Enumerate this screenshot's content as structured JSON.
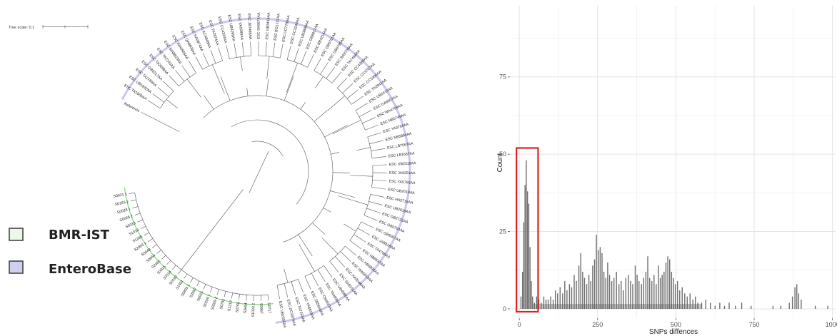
{
  "tree": {
    "scale_label": "Tree scale: 0.1",
    "reference_label": "Reference",
    "tips_enterobase": [
      "ESC TA1665AA",
      "ESC UB1932AA",
      "ESC TA2789AA",
      "ESC GB6217AA",
      "ESC TA2698AA",
      "ESC TA7243AA",
      "ESC WA8823AA",
      "ESC WA6986AA",
      "ESC QA8809AA",
      "ESC HA0874AA",
      "ESC ACA848AA",
      "ESC TA2874AA",
      "ESC CC4324AA",
      "ESC UB4299AA",
      "ESC VA9289AA",
      "ESC JB7469AA",
      "ESC SA8674AA",
      "ESC GB3416AA",
      "ESC BO1737AA",
      "ESC UC7789AA",
      "ESC CC3244AA",
      "ESC UB3880AA",
      "ESC GB8817AA",
      "ESC BB4214AA",
      "ESC GB6781AA",
      "ESC GB6795AA",
      "ESC BA9709AA",
      "ESC TA7494AA",
      "ESC CC4389AA",
      "ESC CC3707AA",
      "ESC CC5306AA",
      "ESC TA2841AA",
      "ESC UB2419AA",
      "ESC GA6507AA",
      "ESC WA4759AA",
      "ESC NB5749AA",
      "ESC YA3764AA",
      "ESC NB5884AA",
      "ESC LB7067AA",
      "ESC LB1667AA",
      "ESC UB2319AA",
      "ESC JA9251AA",
      "ESC YA5791AA",
      "ESC UB2018AA",
      "ESC HA5715AA",
      "ESC UB2919AA",
      "ESC GB2722AA",
      "ESC GB0764AA",
      "ESC GB8307AA",
      "ESC JA8818AA",
      "ESC TA4706AA",
      "ESC NB8537AA",
      "ESC HB8893AA",
      "ESC WA6818AA",
      "ESC HA3044AA",
      "ESC SA8151AA",
      "ESC UB4586AA",
      "ESC TA4999AA",
      "ESC CB4937AA",
      "ESC ZB5665AA",
      "ESC YA8818AA",
      "ESC TA7263AA",
      "ESC DC3474AA",
      "ESC UB2355AA"
    ],
    "tips_bmr": [
      "S0717",
      "S0867",
      "S1033 2",
      "S3654",
      "S0765",
      "S1210",
      "S0792",
      "S0209 2",
      "S0209 1",
      "S0915",
      "S2592",
      "S0893 1",
      "S1401",
      "S0190",
      "S3114",
      "S3315",
      "S2465",
      "S0054",
      "S0048",
      "S2083 1",
      "S1286",
      "S1318",
      "S0318",
      "S0028 2",
      "S0028 1",
      "S0183 2",
      "S3021 1"
    ],
    "colors": {
      "enterobase": "#c8c8f0",
      "bmr": "#7dd27d"
    }
  },
  "legend": {
    "items": [
      {
        "label": "BMR-IST",
        "color": "#ebf8e8",
        "border": "#444444"
      },
      {
        "label": "EnteroBase",
        "color": "#cfd0ef",
        "border": "#444444"
      }
    ]
  },
  "chart_data": {
    "type": "bar",
    "title": "",
    "xlabel": "SNPs diffences",
    "ylabel": "Count",
    "xlim": [
      -30,
      1010
    ],
    "ylim": [
      -3,
      98
    ],
    "xticks": [
      0,
      250,
      500,
      750,
      1000
    ],
    "yticks": [
      0,
      25,
      50,
      75
    ],
    "grid": true,
    "bar_color": "#555555",
    "bins": [
      {
        "x": 5,
        "y": 4
      },
      {
        "x": 10,
        "y": 12
      },
      {
        "x": 14,
        "y": 28
      },
      {
        "x": 18,
        "y": 40
      },
      {
        "x": 22,
        "y": 48
      },
      {
        "x": 26,
        "y": 38
      },
      {
        "x": 30,
        "y": 34
      },
      {
        "x": 34,
        "y": 20
      },
      {
        "x": 38,
        "y": 9
      },
      {
        "x": 42,
        "y": 4
      },
      {
        "x": 48,
        "y": 2
      },
      {
        "x": 55,
        "y": 4
      },
      {
        "x": 62,
        "y": 3
      },
      {
        "x": 70,
        "y": 2
      },
      {
        "x": 78,
        "y": 4
      },
      {
        "x": 85,
        "y": 3
      },
      {
        "x": 92,
        "y": 3
      },
      {
        "x": 100,
        "y": 4
      },
      {
        "x": 108,
        "y": 3
      },
      {
        "x": 115,
        "y": 6
      },
      {
        "x": 122,
        "y": 5
      },
      {
        "x": 130,
        "y": 7
      },
      {
        "x": 138,
        "y": 5
      },
      {
        "x": 145,
        "y": 9
      },
      {
        "x": 152,
        "y": 6
      },
      {
        "x": 160,
        "y": 8
      },
      {
        "x": 167,
        "y": 7
      },
      {
        "x": 175,
        "y": 11
      },
      {
        "x": 182,
        "y": 9
      },
      {
        "x": 190,
        "y": 14
      },
      {
        "x": 196,
        "y": 18
      },
      {
        "x": 202,
        "y": 12
      },
      {
        "x": 208,
        "y": 10
      },
      {
        "x": 215,
        "y": 8
      },
      {
        "x": 222,
        "y": 11
      },
      {
        "x": 228,
        "y": 9
      },
      {
        "x": 234,
        "y": 14
      },
      {
        "x": 240,
        "y": 16
      },
      {
        "x": 246,
        "y": 24
      },
      {
        "x": 252,
        "y": 19
      },
      {
        "x": 258,
        "y": 20
      },
      {
        "x": 264,
        "y": 18
      },
      {
        "x": 270,
        "y": 12
      },
      {
        "x": 276,
        "y": 10
      },
      {
        "x": 282,
        "y": 15
      },
      {
        "x": 288,
        "y": 11
      },
      {
        "x": 295,
        "y": 9
      },
      {
        "x": 302,
        "y": 10
      },
      {
        "x": 310,
        "y": 12
      },
      {
        "x": 318,
        "y": 8
      },
      {
        "x": 325,
        "y": 9
      },
      {
        "x": 332,
        "y": 6
      },
      {
        "x": 340,
        "y": 10
      },
      {
        "x": 348,
        "y": 11
      },
      {
        "x": 355,
        "y": 9
      },
      {
        "x": 362,
        "y": 8
      },
      {
        "x": 370,
        "y": 14
      },
      {
        "x": 376,
        "y": 11
      },
      {
        "x": 382,
        "y": 9
      },
      {
        "x": 390,
        "y": 8
      },
      {
        "x": 397,
        "y": 10
      },
      {
        "x": 404,
        "y": 12
      },
      {
        "x": 410,
        "y": 17
      },
      {
        "x": 416,
        "y": 10
      },
      {
        "x": 423,
        "y": 9
      },
      {
        "x": 430,
        "y": 11
      },
      {
        "x": 437,
        "y": 8
      },
      {
        "x": 444,
        "y": 14
      },
      {
        "x": 450,
        "y": 10
      },
      {
        "x": 456,
        "y": 11
      },
      {
        "x": 462,
        "y": 12
      },
      {
        "x": 468,
        "y": 15
      },
      {
        "x": 474,
        "y": 17
      },
      {
        "x": 480,
        "y": 16
      },
      {
        "x": 486,
        "y": 12
      },
      {
        "x": 492,
        "y": 10
      },
      {
        "x": 498,
        "y": 8
      },
      {
        "x": 505,
        "y": 9
      },
      {
        "x": 512,
        "y": 6
      },
      {
        "x": 520,
        "y": 7
      },
      {
        "x": 528,
        "y": 5
      },
      {
        "x": 536,
        "y": 4
      },
      {
        "x": 545,
        "y": 5
      },
      {
        "x": 554,
        "y": 3
      },
      {
        "x": 562,
        "y": 4
      },
      {
        "x": 570,
        "y": 2
      },
      {
        "x": 582,
        "y": 2
      },
      {
        "x": 595,
        "y": 3
      },
      {
        "x": 610,
        "y": 2
      },
      {
        "x": 625,
        "y": 1
      },
      {
        "x": 640,
        "y": 2
      },
      {
        "x": 655,
        "y": 1
      },
      {
        "x": 670,
        "y": 2
      },
      {
        "x": 690,
        "y": 1
      },
      {
        "x": 710,
        "y": 2
      },
      {
        "x": 740,
        "y": 1
      },
      {
        "x": 810,
        "y": 1
      },
      {
        "x": 835,
        "y": 1
      },
      {
        "x": 862,
        "y": 2
      },
      {
        "x": 872,
        "y": 4
      },
      {
        "x": 880,
        "y": 7
      },
      {
        "x": 886,
        "y": 8
      },
      {
        "x": 892,
        "y": 5
      },
      {
        "x": 900,
        "y": 3
      },
      {
        "x": 945,
        "y": 1
      },
      {
        "x": 985,
        "y": 1
      }
    ],
    "highlight": {
      "x0": 0,
      "x1": 60,
      "y0": 0,
      "y1": 52,
      "color": "#e02020"
    }
  }
}
